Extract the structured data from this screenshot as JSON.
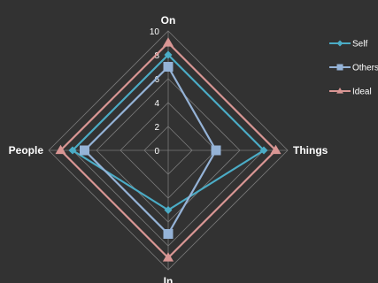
{
  "chart_data": {
    "type": "radar",
    "title": "",
    "axes": [
      "On",
      "Things",
      "In",
      "People"
    ],
    "rlim": [
      0,
      10
    ],
    "ticks": [
      "0",
      "2",
      "4",
      "6",
      "8",
      "10"
    ],
    "grid": true,
    "legend_position": "right",
    "series": [
      {
        "name": "Self",
        "values": [
          8,
          8,
          5,
          8
        ],
        "color": "#4bacc6",
        "marker": "diamond"
      },
      {
        "name": "Others",
        "values": [
          7,
          4,
          7,
          7
        ],
        "color": "#95b3d7",
        "marker": "square"
      },
      {
        "name": "Ideal",
        "values": [
          9,
          9,
          9,
          9
        ],
        "color": "#d99694",
        "marker": "triangle"
      }
    ]
  }
}
